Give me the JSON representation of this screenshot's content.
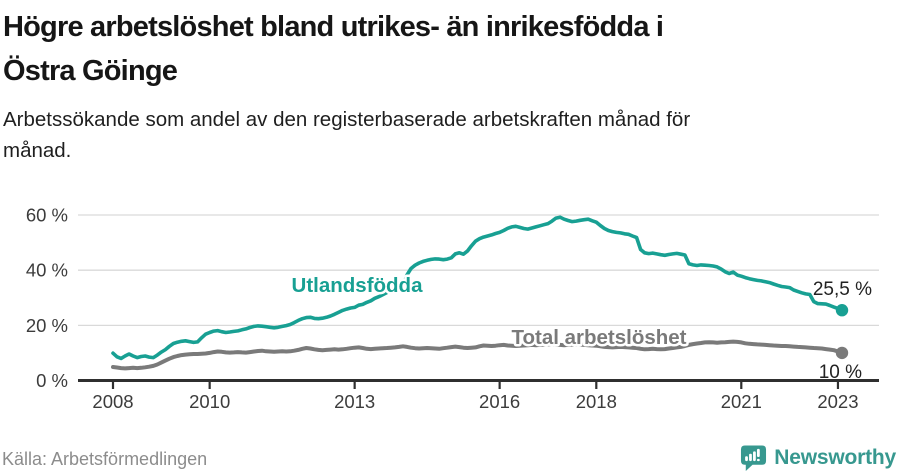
{
  "header": {
    "title_line1": "Högre arbetslöshet bland utrikes- än inrikesfödda i",
    "title_line2": "Östra Göinge",
    "subtitle_line1": "Arbetssökande som andel av den registerbaserade arbetskraften månad för",
    "subtitle_line2": "månad."
  },
  "footer": {
    "source": "Källa: Arbetsförmedlingen",
    "brand": "Newsworthy",
    "brand_icon": "newsworthy-speech-bubble-bar-chart-icon",
    "brand_color": "#37988f"
  },
  "chart_data": {
    "type": "line",
    "title": "Högre arbetslöshet bland utrikes- än inrikesfödda i Östra Göinge",
    "subtitle": "Arbetssökande som andel av den registerbaserade arbetskraften månad för månad.",
    "x_start_year": 2008,
    "points_per_year": 12,
    "x_tick_years": [
      2008,
      2010,
      2013,
      2016,
      2018,
      2021,
      2023
    ],
    "y_ticks": [
      0,
      20,
      40,
      60
    ],
    "y_tick_suffix": " %",
    "ylim": [
      0,
      62
    ],
    "grid": "horizontal",
    "grid_color": "#d9d9d9",
    "axis_color": "#2f2f2f",
    "series": [
      {
        "name": "Utlandsfödda",
        "color": "#18a093",
        "end_label": "25,5 %",
        "end_value": 25.5,
        "values": [
          9.9,
          8.6,
          8.0,
          8.9,
          9.6,
          8.9,
          8.3,
          8.7,
          8.9,
          8.5,
          8.3,
          9.2,
          10.3,
          11.2,
          12.4,
          13.4,
          13.9,
          14.2,
          14.4,
          14.1,
          13.8,
          14.0,
          15.5,
          16.8,
          17.4,
          17.9,
          18.1,
          17.7,
          17.4,
          17.6,
          17.8,
          18.0,
          18.4,
          18.7,
          19.2,
          19.6,
          19.8,
          19.7,
          19.5,
          19.3,
          19.1,
          19.3,
          19.6,
          19.9,
          20.3,
          21.0,
          21.8,
          22.4,
          22.8,
          22.9,
          22.5,
          22.4,
          22.6,
          22.9,
          23.4,
          24.0,
          24.7,
          25.4,
          25.9,
          26.3,
          26.5,
          27.3,
          27.6,
          28.3,
          28.9,
          29.8,
          30.4,
          31.1,
          31.9,
          32.6,
          33.6,
          35.8,
          34.2,
          38.3,
          40.6,
          41.8,
          42.6,
          43.2,
          43.6,
          43.9,
          44.1,
          44.0,
          43.8,
          44.0,
          44.5,
          45.9,
          46.3,
          45.8,
          46.9,
          48.8,
          50.5,
          51.4,
          52.0,
          52.4,
          52.8,
          53.3,
          53.7,
          54.4,
          55.2,
          55.7,
          55.9,
          55.5,
          55.1,
          54.9,
          55.3,
          55.7,
          56.1,
          56.5,
          56.9,
          57.8,
          58.9,
          59.2,
          58.5,
          58.0,
          57.6,
          57.8,
          58.1,
          58.3,
          58.5,
          57.9,
          57.4,
          56.2,
          55.1,
          54.4,
          54.0,
          53.7,
          53.5,
          53.2,
          53.0,
          52.4,
          51.8,
          47.5,
          46.3,
          46.0,
          46.2,
          45.9,
          45.6,
          45.4,
          45.7,
          45.9,
          46.1,
          45.8,
          45.5,
          42.3,
          41.9,
          41.7,
          41.9,
          41.8,
          41.7,
          41.5,
          41.2,
          40.4,
          39.4,
          38.8,
          39.3,
          38.2,
          37.8,
          37.3,
          36.9,
          36.6,
          36.3,
          36.1,
          35.8,
          35.5,
          35.0,
          34.5,
          34.1,
          33.9,
          33.7,
          32.8,
          32.3,
          31.8,
          31.4,
          31.2,
          28.6,
          27.9,
          27.8,
          27.7,
          27.2,
          26.6,
          26.1,
          25.5
        ]
      },
      {
        "name": "Total arbetslöshet",
        "color": "#7a7a7a",
        "end_label": "10 %",
        "end_value": 10,
        "values": [
          4.9,
          4.7,
          4.5,
          4.4,
          4.5,
          4.6,
          4.5,
          4.6,
          4.8,
          5.0,
          5.3,
          5.8,
          6.5,
          7.2,
          7.9,
          8.5,
          8.9,
          9.2,
          9.4,
          9.5,
          9.6,
          9.6,
          9.7,
          9.8,
          10.0,
          10.3,
          10.5,
          10.4,
          10.2,
          10.1,
          10.2,
          10.3,
          10.2,
          10.1,
          10.3,
          10.5,
          10.7,
          10.8,
          10.6,
          10.5,
          10.4,
          10.5,
          10.6,
          10.5,
          10.6,
          10.8,
          11.1,
          11.5,
          11.8,
          11.6,
          11.3,
          11.1,
          11.0,
          11.1,
          11.2,
          11.3,
          11.2,
          11.3,
          11.5,
          11.7,
          11.9,
          12.0,
          11.8,
          11.5,
          11.4,
          11.5,
          11.6,
          11.7,
          11.8,
          11.9,
          12.0,
          12.2,
          12.4,
          12.2,
          11.9,
          11.7,
          11.6,
          11.7,
          11.8,
          11.7,
          11.6,
          11.5,
          11.7,
          11.9,
          12.1,
          12.3,
          12.1,
          11.9,
          11.8,
          11.9,
          12.0,
          12.4,
          12.7,
          12.6,
          12.5,
          12.6,
          12.8,
          12.9,
          12.7,
          12.6,
          12.5,
          12.6,
          12.7,
          12.8,
          12.9,
          12.8,
          12.9,
          13.0,
          13.1,
          13.2,
          13.0,
          12.9,
          12.8,
          12.9,
          13.0,
          13.1,
          13.0,
          12.9,
          12.8,
          12.7,
          12.6,
          12.4,
          12.2,
          12.1,
          12.0,
          12.1,
          12.2,
          12.1,
          12.0,
          11.9,
          11.8,
          11.5,
          11.3,
          11.4,
          11.5,
          11.4,
          11.3,
          11.4,
          11.6,
          11.8,
          12.0,
          12.2,
          12.5,
          12.9,
          13.2,
          13.4,
          13.6,
          13.8,
          13.9,
          13.8,
          13.7,
          13.8,
          13.9,
          14.0,
          14.1,
          14.0,
          13.8,
          13.5,
          13.3,
          13.2,
          13.1,
          13.0,
          12.9,
          12.8,
          12.7,
          12.6,
          12.5,
          12.5,
          12.4,
          12.3,
          12.2,
          12.1,
          12.0,
          11.9,
          11.8,
          11.7,
          11.6,
          11.4,
          11.2,
          11.0,
          10.5,
          10.0
        ]
      }
    ]
  }
}
